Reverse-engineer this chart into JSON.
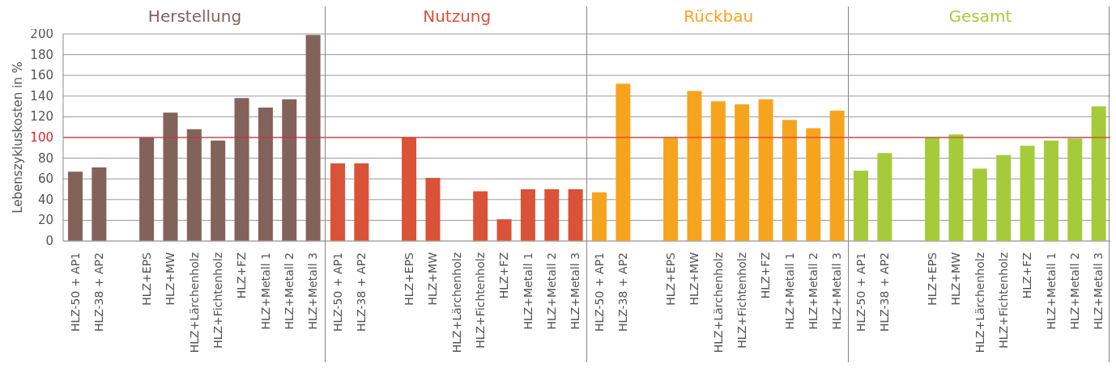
{
  "chart_data": [
    {
      "type": "bar",
      "title": "Herstellung",
      "ylabel": "Lebenszykluskosten in %",
      "categories": [
        "HLZ-50 + AP1",
        "HLZ-38 + AP2",
        null,
        "HLZ+EPS",
        "HLZ+MW",
        "HLZ+Lärchenholz",
        "HLZ+Fichtenholz",
        "HLZ+FZ",
        "HLZ+Metall 1",
        "HLZ+Metall 2",
        "HLZ+Metall 3"
      ],
      "values": [
        67,
        71,
        null,
        100,
        124,
        108,
        97,
        138,
        129,
        137,
        199
      ],
      "color": "#83625a",
      "ylim": [
        0,
        200
      ],
      "yticks": [
        0,
        20,
        40,
        60,
        80,
        100,
        120,
        140,
        160,
        180,
        200
      ],
      "grid": "y",
      "ref_lines": [
        {
          "axis": "y",
          "value": 100,
          "color": "#e3232c"
        }
      ]
    },
    {
      "type": "bar",
      "title": "Nutzung",
      "categories": [
        "HLZ-50 + AP1",
        "HLZ-38 + AP2",
        null,
        "HLZ+EPS",
        "HLZ+MW",
        "HLZ+Lärchenholz",
        "HLZ+Fichtenholz",
        "HLZ+FZ",
        "HLZ+Metall 1",
        "HLZ+Metall 2",
        "HLZ+Metall 3"
      ],
      "values": [
        75,
        75,
        null,
        100,
        61,
        0,
        48,
        21,
        50,
        50,
        50
      ],
      "color": "#da5237",
      "ylim": [
        0,
        200
      ],
      "yticks": [
        0,
        20,
        40,
        60,
        80,
        100,
        120,
        140,
        160,
        180,
        200
      ],
      "grid": "y",
      "tick_labels": "x",
      "ref_lines": [
        {
          "axis": "y",
          "value": 100,
          "color": "#e3232c"
        }
      ]
    },
    {
      "type": "bar",
      "title": "Rückbau",
      "categories": [
        "HLZ-50 + AP1",
        "HLZ-38 + AP2",
        null,
        "HLZ+EPS",
        "HLZ+MW",
        "HLZ+Lärchenholz",
        "HLZ+Fichtenholz",
        "HLZ+FZ",
        "HLZ+Metall 1",
        "HLZ+Metall 2",
        "HLZ+Metall 3"
      ],
      "values": [
        47,
        152,
        null,
        100,
        145,
        135,
        132,
        137,
        117,
        109,
        126
      ],
      "color": "#f6a41e",
      "ylim": [
        0,
        200
      ],
      "yticks": [
        0,
        20,
        40,
        60,
        80,
        100,
        120,
        140,
        160,
        180,
        200
      ],
      "grid": "y",
      "tick_labels": "x",
      "ref_lines": [
        {
          "axis": "y",
          "value": 100,
          "color": "#e3232c"
        }
      ]
    },
    {
      "type": "bar",
      "title": "Gesamt",
      "categories": [
        "HLZ-50 + AP1",
        "HLZ-38 + AP2",
        null,
        "HLZ+EPS",
        "HLZ+MW",
        "HLZ+Lärchenholz",
        "HLZ+Fichtenholz",
        "HLZ+FZ",
        "HLZ+Metall 1",
        "HLZ+Metall 2",
        "HLZ+Metall 3"
      ],
      "values": [
        68,
        85,
        null,
        100,
        103,
        70,
        83,
        92,
        97,
        99,
        130
      ],
      "color": "#a5cb3a",
      "ylim": [
        0,
        200
      ],
      "yticks": [
        0,
        20,
        40,
        60,
        80,
        100,
        120,
        140,
        160,
        180,
        200
      ],
      "grid": "y",
      "tick_labels": "x",
      "ref_lines": [
        {
          "axis": "y",
          "value": 100,
          "color": "#e3232c"
        }
      ]
    }
  ]
}
